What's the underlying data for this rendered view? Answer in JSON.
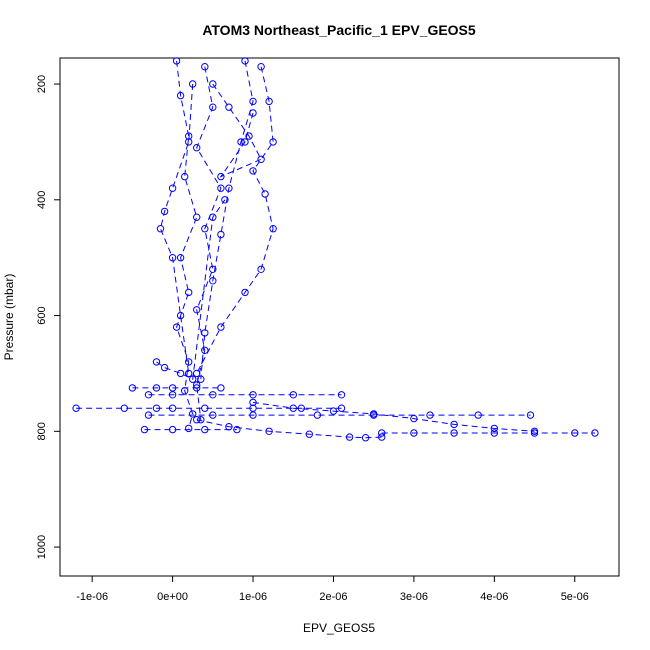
{
  "chart_data": {
    "type": "scatter",
    "title": "ATOM3 Northeast_Pacific_1 EPV_GEOS5",
    "xlabel": "EPV_GEOS5",
    "ylabel": "Pressure (mbar)",
    "xlim": [
      -1.4e-06,
      5.55e-06
    ],
    "ylim": [
      1050,
      155
    ],
    "y_reversed": true,
    "x_ticks": [
      -1e-06,
      0,
      1e-06,
      2e-06,
      3e-06,
      4e-06,
      5e-06
    ],
    "x_tick_labels": [
      "-1e-06",
      "0e+00",
      "1e-06",
      "2e-06",
      "3e-06",
      "4e-06",
      "5e-06"
    ],
    "y_ticks": [
      200,
      400,
      600,
      800,
      1000
    ],
    "y_tick_labels": [
      "200",
      "400",
      "600",
      "800",
      "1000"
    ],
    "marker": "open-circle",
    "line_style": "dashed",
    "color": "#0000ff",
    "grid": false,
    "series": [
      {
        "x": [
          5e-08,
          1e-07,
          2e-07,
          1.5e-07,
          3e-07,
          1e-07,
          2e-07,
          5e-08,
          2e-07,
          1.5e-07,
          2.5e-07,
          2e-07
        ],
        "y": [
          160,
          220,
          290,
          360,
          430,
          500,
          560,
          620,
          680,
          730,
          770,
          795
        ]
      },
      {
        "x": [
          4e-07,
          5e-07,
          3e-07,
          6e-07,
          4e-07,
          5e-07,
          3e-07,
          4e-07,
          3e-07,
          3.5e-07
        ],
        "y": [
          170,
          240,
          310,
          380,
          450,
          520,
          590,
          660,
          720,
          780
        ]
      },
      {
        "x": [
          9e-07,
          1e-06,
          8.5e-07,
          7e-07,
          6e-07,
          5e-07,
          4e-07,
          3.5e-07
        ],
        "y": [
          160,
          230,
          300,
          380,
          460,
          540,
          630,
          710
        ]
      },
      {
        "x": [
          1.1e-06,
          1.2e-06,
          1.25e-06,
          1e-06,
          1.15e-06,
          1.25e-06,
          1.1e-06,
          9e-07,
          6e-07,
          3e-07
        ],
        "y": [
          170,
          230,
          300,
          350,
          390,
          450,
          520,
          560,
          620,
          700
        ]
      },
      {
        "x": [
          2.5e-07,
          2e-07,
          0.0,
          -1e-07,
          -1.5e-07,
          0.0,
          1e-07,
          2e-07
        ],
        "y": [
          200,
          300,
          380,
          420,
          450,
          500,
          600,
          700
        ]
      },
      {
        "x": [
          -1.2e-06,
          -6e-07,
          -2e-07,
          0.0,
          4e-07,
          1e-06,
          1.6e-06,
          2.1e-06
        ],
        "y": [
          760,
          760,
          760,
          760,
          760,
          760,
          760,
          760
        ]
      },
      {
        "x": [
          -3e-07,
          0.0,
          5e-07,
          1e-06,
          1.5e-06,
          2.1e-06
        ],
        "y": [
          737,
          737,
          737,
          737,
          737,
          737
        ]
      },
      {
        "x": [
          -5e-07,
          -2e-07,
          0.0,
          3e-07,
          6e-07
        ],
        "y": [
          725,
          725,
          725,
          725,
          725
        ]
      },
      {
        "x": [
          -3e-07,
          5e-07,
          1e-06,
          1.8e-06,
          2.5e-06,
          3.2e-06,
          3.8e-06,
          4.45e-06
        ],
        "y": [
          772,
          772,
          772,
          772,
          772,
          772,
          772,
          772
        ]
      },
      {
        "x": [
          -3.5e-07,
          0.0,
          4e-07,
          8e-07
        ],
        "y": [
          797,
          797,
          797,
          797
        ]
      },
      {
        "x": [
          3e-07,
          7e-07,
          1.2e-06,
          1.7e-06,
          2.2e-06,
          2.4e-06,
          2.6e-06
        ],
        "y": [
          780,
          792,
          800,
          805,
          810,
          811,
          810
        ]
      },
      {
        "x": [
          2.6e-06,
          3e-06,
          3.5e-06,
          4e-06,
          4.5e-06,
          5e-06,
          5.25e-06
        ],
        "y": [
          803,
          803,
          803,
          803,
          803,
          803,
          803
        ]
      },
      {
        "x": [
          1e-06,
          1.5e-06,
          2e-06,
          2.5e-06,
          3e-06,
          3.5e-06,
          4e-06,
          4.5e-06
        ],
        "y": [
          750,
          760,
          765,
          770,
          778,
          788,
          795,
          800
        ]
      },
      {
        "x": [
          5e-07,
          7e-07,
          9.5e-07,
          1.1e-06,
          6e-07,
          9e-07,
          1e-06
        ],
        "y": [
          200,
          240,
          290,
          330,
          360,
          300,
          250
        ]
      },
      {
        "x": [
          -2e-07,
          -1e-07,
          1e-07,
          2.5e-07,
          5e-07,
          6.5e-07
        ],
        "y": [
          680,
          690,
          700,
          710,
          430,
          400
        ]
      }
    ]
  }
}
